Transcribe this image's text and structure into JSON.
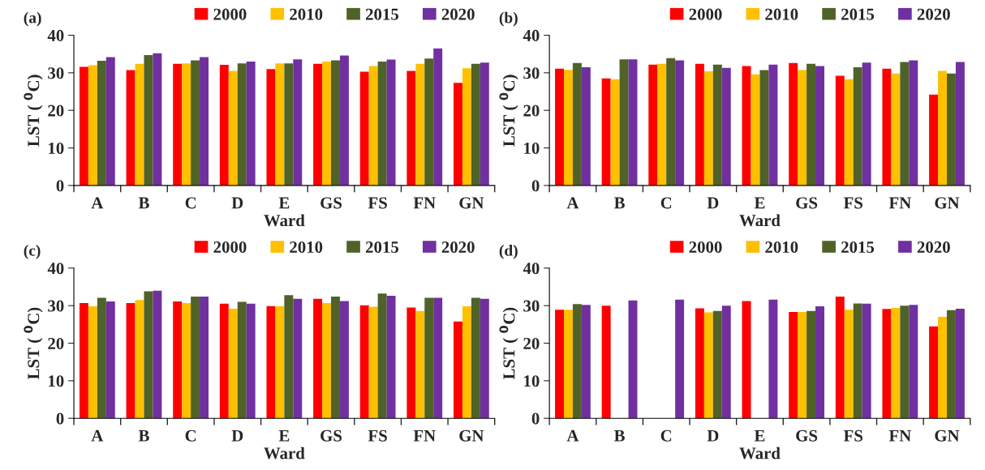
{
  "chart_data": [
    {
      "type": "bar",
      "title": "(a)",
      "xlabel": "Ward",
      "ylabel": "LST ( $^{0}$C)",
      "categories": [
        "A",
        "B",
        "C",
        "D",
        "E",
        "GS",
        "FS",
        "FN",
        "GN"
      ],
      "ylim": [
        0,
        40
      ],
      "yticks": [
        0,
        10,
        20,
        30,
        40
      ],
      "legend": "top",
      "grid": false,
      "series": [
        {
          "name": "2000",
          "color": "#ff0000",
          "values": [
            31.6,
            30.7,
            32.4,
            32.1,
            31.0,
            32.4,
            30.3,
            30.5,
            27.3
          ]
        },
        {
          "name": "2010",
          "color": "#ffc000",
          "values": [
            32.0,
            32.4,
            32.5,
            30.5,
            32.5,
            33.0,
            31.8,
            32.4,
            31.2
          ]
        },
        {
          "name": "2015",
          "color": "#4f6228",
          "values": [
            33.2,
            34.7,
            33.3,
            32.5,
            32.5,
            33.3,
            33.0,
            33.8,
            32.4
          ]
        },
        {
          "name": "2020",
          "color": "#7030a0",
          "values": [
            34.2,
            35.2,
            34.2,
            33.0,
            33.6,
            34.6,
            33.5,
            36.5,
            32.7
          ]
        }
      ]
    },
    {
      "type": "bar",
      "title": "(b)",
      "xlabel": "Ward",
      "ylabel": "LST ( $^{0}$C)",
      "categories": [
        "A",
        "B",
        "C",
        "D",
        "E",
        "GS",
        "FS",
        "FN",
        "GN"
      ],
      "ylim": [
        0,
        40
      ],
      "yticks": [
        0,
        10,
        20,
        30,
        40
      ],
      "legend": "top",
      "grid": false,
      "series": [
        {
          "name": "2000",
          "color": "#ff0000",
          "values": [
            31.1,
            28.5,
            32.2,
            32.4,
            31.8,
            32.6,
            29.2,
            31.1,
            24.2
          ]
        },
        {
          "name": "2010",
          "color": "#ffc000",
          "values": [
            30.8,
            28.3,
            32.4,
            30.4,
            29.6,
            30.7,
            28.3,
            29.8,
            30.5
          ]
        },
        {
          "name": "2015",
          "color": "#4f6228",
          "values": [
            32.6,
            33.6,
            33.9,
            32.2,
            30.7,
            32.4,
            31.5,
            32.9,
            29.8
          ]
        },
        {
          "name": "2020",
          "color": "#7030a0",
          "values": [
            31.5,
            33.6,
            33.3,
            31.3,
            32.2,
            31.8,
            32.7,
            33.3,
            32.9
          ]
        }
      ]
    },
    {
      "type": "bar",
      "title": "(c)",
      "xlabel": "Ward",
      "ylabel": "LST ( $^{0}$C)",
      "categories": [
        "A",
        "B",
        "C",
        "D",
        "E",
        "GS",
        "FS",
        "FN",
        "GN"
      ],
      "ylim": [
        0,
        40
      ],
      "yticks": [
        0,
        10,
        20,
        30,
        40
      ],
      "legend": "top",
      "grid": false,
      "series": [
        {
          "name": "2000",
          "color": "#ff0000",
          "values": [
            30.7,
            30.7,
            31.1,
            30.5,
            29.9,
            31.8,
            30.1,
            29.5,
            25.8
          ]
        },
        {
          "name": "2010",
          "color": "#ffc000",
          "values": [
            29.8,
            31.5,
            30.7,
            29.2,
            29.9,
            30.7,
            29.7,
            28.6,
            29.8
          ]
        },
        {
          "name": "2015",
          "color": "#4f6228",
          "values": [
            32.1,
            33.8,
            32.4,
            31.0,
            32.8,
            32.4,
            33.2,
            32.1,
            32.1
          ]
        },
        {
          "name": "2020",
          "color": "#7030a0",
          "values": [
            31.1,
            34.0,
            32.4,
            30.5,
            31.8,
            31.2,
            32.6,
            32.1,
            31.8
          ]
        }
      ]
    },
    {
      "type": "bar",
      "title": "(d)",
      "xlabel": "Ward",
      "ylabel": "LST ( $^{0}$C)",
      "categories": [
        "A",
        "B",
        "C",
        "D",
        "E",
        "GS",
        "FS",
        "FN",
        "GN"
      ],
      "ylim": [
        0,
        40
      ],
      "yticks": [
        0,
        10,
        20,
        30,
        40
      ],
      "legend": "top",
      "grid": false,
      "series": [
        {
          "name": "2000",
          "color": "#ff0000",
          "values": [
            28.9,
            30.0,
            null,
            29.3,
            31.2,
            28.3,
            32.4,
            29.1,
            24.5
          ]
        },
        {
          "name": "2010",
          "color": "#ffc000",
          "values": [
            28.9,
            null,
            null,
            28.2,
            null,
            28.3,
            28.9,
            29.4,
            27.0
          ]
        },
        {
          "name": "2015",
          "color": "#4f6228",
          "values": [
            30.4,
            null,
            null,
            28.6,
            null,
            28.6,
            30.6,
            30.0,
            28.8
          ]
        },
        {
          "name": "2020",
          "color": "#7030a0",
          "values": [
            30.2,
            31.4,
            31.6,
            30.0,
            31.6,
            29.8,
            30.5,
            30.2,
            29.2
          ]
        }
      ]
    }
  ]
}
